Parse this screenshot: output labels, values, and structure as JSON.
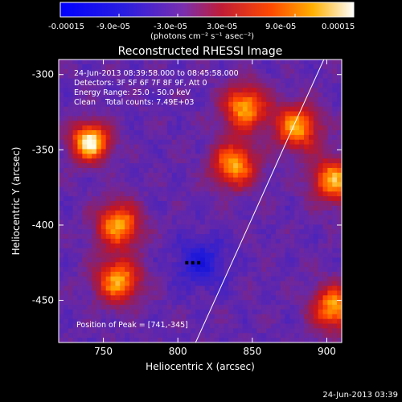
{
  "colorbar": {
    "ticks": [
      "-0.00015",
      "-9.0e-05",
      "-3.0e-05",
      "3.0e-05",
      "9.0e-05",
      "0.00015"
    ],
    "unit": "(photons cm⁻² s⁻¹ asec⁻²)",
    "range": [
      -0.00015,
      0.00015
    ]
  },
  "chart_data": {
    "type": "heatmap",
    "title": "Reconstructed RHESSI Image",
    "xlabel": "Heliocentric X (arcsec)",
    "ylabel": "Heliocentric Y (arcsec)",
    "xlim": [
      720,
      910
    ],
    "ylim": [
      -478,
      -290
    ],
    "xticks": [
      750,
      800,
      850,
      900
    ],
    "yticks": [
      -300,
      -350,
      -400,
      -450
    ],
    "colormap": "blue-purple-red-yellow-white",
    "info_lines": [
      "24-Jun-2013 08:39:58.000 to 08:45:58.000",
      "Detectors: 3F 5F 6F 7F 8F 9F, Att 0",
      "Energy Range: 25.0 - 50.0 keV",
      "Clean    Total counts: 7.49E+03"
    ],
    "peak_label": "Position of Peak = [741,-345]",
    "peak": [
      741,
      -345
    ],
    "bright_sources": [
      {
        "x": 741,
        "y": -345
      },
      {
        "x": 760,
        "y": -400
      },
      {
        "x": 760,
        "y": -437
      },
      {
        "x": 838,
        "y": -360
      },
      {
        "x": 845,
        "y": -322
      },
      {
        "x": 880,
        "y": -335
      },
      {
        "x": 905,
        "y": -370
      },
      {
        "x": 905,
        "y": -455
      }
    ],
    "limb_curve": [
      [
        811,
        -480
      ],
      [
        850,
        -395
      ],
      [
        875,
        -340
      ],
      [
        898,
        -290
      ]
    ],
    "grid": false
  },
  "footer": {
    "timestamp": "24-Jun-2013 03:39"
  },
  "colors": {
    "background": "#000000",
    "foreground": "#ffffff"
  }
}
